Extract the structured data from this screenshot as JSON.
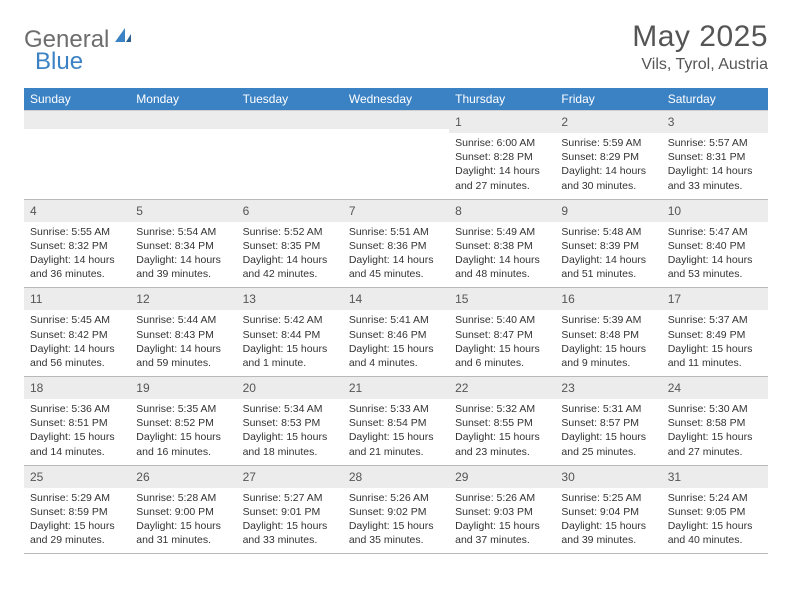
{
  "logo": {
    "general": "General",
    "blue": "Blue"
  },
  "title": "May 2025",
  "location": "Vils, Tyrol, Austria",
  "colors": {
    "header_bg": "#3b82c4",
    "header_text": "#ffffff",
    "daynum_bg": "#ececec",
    "border": "#b9b9b9",
    "text": "#333333",
    "title_text": "#555555"
  },
  "weekdays": [
    "Sunday",
    "Monday",
    "Tuesday",
    "Wednesday",
    "Thursday",
    "Friday",
    "Saturday"
  ],
  "weeks": [
    [
      {
        "blank": true
      },
      {
        "blank": true
      },
      {
        "blank": true
      },
      {
        "blank": true
      },
      {
        "day": "1",
        "sunrise": "Sunrise: 6:00 AM",
        "sunset": "Sunset: 8:28 PM",
        "daylight": "Daylight: 14 hours and 27 minutes."
      },
      {
        "day": "2",
        "sunrise": "Sunrise: 5:59 AM",
        "sunset": "Sunset: 8:29 PM",
        "daylight": "Daylight: 14 hours and 30 minutes."
      },
      {
        "day": "3",
        "sunrise": "Sunrise: 5:57 AM",
        "sunset": "Sunset: 8:31 PM",
        "daylight": "Daylight: 14 hours and 33 minutes."
      }
    ],
    [
      {
        "day": "4",
        "sunrise": "Sunrise: 5:55 AM",
        "sunset": "Sunset: 8:32 PM",
        "daylight": "Daylight: 14 hours and 36 minutes."
      },
      {
        "day": "5",
        "sunrise": "Sunrise: 5:54 AM",
        "sunset": "Sunset: 8:34 PM",
        "daylight": "Daylight: 14 hours and 39 minutes."
      },
      {
        "day": "6",
        "sunrise": "Sunrise: 5:52 AM",
        "sunset": "Sunset: 8:35 PM",
        "daylight": "Daylight: 14 hours and 42 minutes."
      },
      {
        "day": "7",
        "sunrise": "Sunrise: 5:51 AM",
        "sunset": "Sunset: 8:36 PM",
        "daylight": "Daylight: 14 hours and 45 minutes."
      },
      {
        "day": "8",
        "sunrise": "Sunrise: 5:49 AM",
        "sunset": "Sunset: 8:38 PM",
        "daylight": "Daylight: 14 hours and 48 minutes."
      },
      {
        "day": "9",
        "sunrise": "Sunrise: 5:48 AM",
        "sunset": "Sunset: 8:39 PM",
        "daylight": "Daylight: 14 hours and 51 minutes."
      },
      {
        "day": "10",
        "sunrise": "Sunrise: 5:47 AM",
        "sunset": "Sunset: 8:40 PM",
        "daylight": "Daylight: 14 hours and 53 minutes."
      }
    ],
    [
      {
        "day": "11",
        "sunrise": "Sunrise: 5:45 AM",
        "sunset": "Sunset: 8:42 PM",
        "daylight": "Daylight: 14 hours and 56 minutes."
      },
      {
        "day": "12",
        "sunrise": "Sunrise: 5:44 AM",
        "sunset": "Sunset: 8:43 PM",
        "daylight": "Daylight: 14 hours and 59 minutes."
      },
      {
        "day": "13",
        "sunrise": "Sunrise: 5:42 AM",
        "sunset": "Sunset: 8:44 PM",
        "daylight": "Daylight: 15 hours and 1 minute."
      },
      {
        "day": "14",
        "sunrise": "Sunrise: 5:41 AM",
        "sunset": "Sunset: 8:46 PM",
        "daylight": "Daylight: 15 hours and 4 minutes."
      },
      {
        "day": "15",
        "sunrise": "Sunrise: 5:40 AM",
        "sunset": "Sunset: 8:47 PM",
        "daylight": "Daylight: 15 hours and 6 minutes."
      },
      {
        "day": "16",
        "sunrise": "Sunrise: 5:39 AM",
        "sunset": "Sunset: 8:48 PM",
        "daylight": "Daylight: 15 hours and 9 minutes."
      },
      {
        "day": "17",
        "sunrise": "Sunrise: 5:37 AM",
        "sunset": "Sunset: 8:49 PM",
        "daylight": "Daylight: 15 hours and 11 minutes."
      }
    ],
    [
      {
        "day": "18",
        "sunrise": "Sunrise: 5:36 AM",
        "sunset": "Sunset: 8:51 PM",
        "daylight": "Daylight: 15 hours and 14 minutes."
      },
      {
        "day": "19",
        "sunrise": "Sunrise: 5:35 AM",
        "sunset": "Sunset: 8:52 PM",
        "daylight": "Daylight: 15 hours and 16 minutes."
      },
      {
        "day": "20",
        "sunrise": "Sunrise: 5:34 AM",
        "sunset": "Sunset: 8:53 PM",
        "daylight": "Daylight: 15 hours and 18 minutes."
      },
      {
        "day": "21",
        "sunrise": "Sunrise: 5:33 AM",
        "sunset": "Sunset: 8:54 PM",
        "daylight": "Daylight: 15 hours and 21 minutes."
      },
      {
        "day": "22",
        "sunrise": "Sunrise: 5:32 AM",
        "sunset": "Sunset: 8:55 PM",
        "daylight": "Daylight: 15 hours and 23 minutes."
      },
      {
        "day": "23",
        "sunrise": "Sunrise: 5:31 AM",
        "sunset": "Sunset: 8:57 PM",
        "daylight": "Daylight: 15 hours and 25 minutes."
      },
      {
        "day": "24",
        "sunrise": "Sunrise: 5:30 AM",
        "sunset": "Sunset: 8:58 PM",
        "daylight": "Daylight: 15 hours and 27 minutes."
      }
    ],
    [
      {
        "day": "25",
        "sunrise": "Sunrise: 5:29 AM",
        "sunset": "Sunset: 8:59 PM",
        "daylight": "Daylight: 15 hours and 29 minutes."
      },
      {
        "day": "26",
        "sunrise": "Sunrise: 5:28 AM",
        "sunset": "Sunset: 9:00 PM",
        "daylight": "Daylight: 15 hours and 31 minutes."
      },
      {
        "day": "27",
        "sunrise": "Sunrise: 5:27 AM",
        "sunset": "Sunset: 9:01 PM",
        "daylight": "Daylight: 15 hours and 33 minutes."
      },
      {
        "day": "28",
        "sunrise": "Sunrise: 5:26 AM",
        "sunset": "Sunset: 9:02 PM",
        "daylight": "Daylight: 15 hours and 35 minutes."
      },
      {
        "day": "29",
        "sunrise": "Sunrise: 5:26 AM",
        "sunset": "Sunset: 9:03 PM",
        "daylight": "Daylight: 15 hours and 37 minutes."
      },
      {
        "day": "30",
        "sunrise": "Sunrise: 5:25 AM",
        "sunset": "Sunset: 9:04 PM",
        "daylight": "Daylight: 15 hours and 39 minutes."
      },
      {
        "day": "31",
        "sunrise": "Sunrise: 5:24 AM",
        "sunset": "Sunset: 9:05 PM",
        "daylight": "Daylight: 15 hours and 40 minutes."
      }
    ]
  ]
}
